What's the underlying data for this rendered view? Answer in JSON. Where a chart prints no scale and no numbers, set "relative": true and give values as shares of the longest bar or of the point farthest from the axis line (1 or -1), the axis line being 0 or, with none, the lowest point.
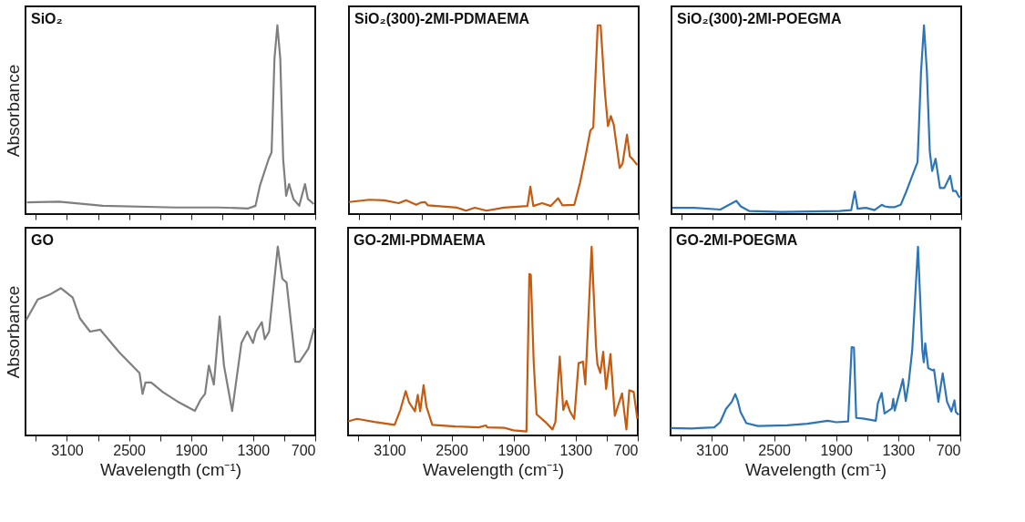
{
  "chart_data": [
    {
      "type": "line",
      "title": "SiO₂",
      "ylabel": "Absorbance",
      "relative": true,
      "tick_labels": false,
      "color": "#7f7f7f",
      "xlim": [
        3500,
        700
      ],
      "xticks": [
        {
          "value": 3400,
          "label": null
        },
        3100,
        {
          "value": 2800,
          "label": null
        },
        2500,
        {
          "value": 2200,
          "label": null
        },
        1900,
        {
          "value": 1600,
          "label": null
        },
        1300,
        {
          "value": 1000,
          "label": null
        },
        700
      ],
      "x": [
        3486,
        3176,
        2754,
        2051,
        1629,
        1347,
        1277,
        1235,
        1150,
        1122,
        1094,
        1066,
        1038,
        1010,
        981,
        953,
        911,
        855,
        799,
        771,
        714
      ],
      "values": [
        0.062,
        0.066,
        0.044,
        0.035,
        0.035,
        0.03,
        0.044,
        0.15,
        0.292,
        0.327,
        0.823,
        1.0,
        0.823,
        0.292,
        0.097,
        0.159,
        0.08,
        0.044,
        0.159,
        0.08,
        0.053
      ]
    },
    {
      "type": "line",
      "title": "SiO₂(300)-2MI-PDMAEMA",
      "relative": true,
      "tick_labels": false,
      "color": "#c55a11",
      "xlim": [
        3500,
        700
      ],
      "xticks": [
        {
          "value": 3400,
          "label": null
        },
        3100,
        {
          "value": 2800,
          "label": null
        },
        2500,
        {
          "value": 2200,
          "label": null
        },
        1900,
        {
          "value": 1600,
          "label": null
        },
        1300,
        {
          "value": 1000,
          "label": null
        },
        700
      ],
      "x": [
        3500,
        3302,
        3161,
        3019,
        2949,
        2850,
        2807,
        2765,
        2736,
        2454,
        2369,
        2284,
        2171,
        2001,
        1775,
        1747,
        1718,
        1634,
        1549,
        1478,
        1436,
        1322,
        1266,
        1209,
        1167,
        1139,
        1096,
        1068,
        1026,
        997,
        969,
        941,
        884,
        856,
        813,
        785,
        757,
        714
      ],
      "values": [
        0.064,
        0.076,
        0.073,
        0.058,
        0.073,
        0.049,
        0.061,
        0.064,
        0.046,
        0.034,
        0.018,
        0.034,
        0.018,
        0.034,
        0.043,
        0.145,
        0.043,
        0.058,
        0.043,
        0.084,
        0.046,
        0.049,
        0.168,
        0.321,
        0.443,
        0.458,
        1.0,
        1.0,
        0.641,
        0.466,
        0.519,
        0.473,
        0.244,
        0.267,
        0.42,
        0.305,
        0.29,
        0.26
      ]
    },
    {
      "type": "line",
      "title": "SiO₂(300)-2MI-POEGMA",
      "relative": true,
      "tick_labels": false,
      "color": "#2e75b6",
      "xlim": [
        3500,
        700
      ],
      "xticks": [
        {
          "value": 3400,
          "label": null
        },
        3100,
        {
          "value": 2800,
          "label": null
        },
        2500,
        {
          "value": 2200,
          "label": null
        },
        1900,
        {
          "value": 1600,
          "label": null
        },
        1300,
        {
          "value": 1000,
          "label": null
        },
        700
      ],
      "x": [
        3492,
        3281,
        3028,
        2943,
        2873,
        2831,
        2747,
        2437,
        1875,
        1763,
        1729,
        1701,
        1622,
        1538,
        1468,
        1440,
        1397,
        1341,
        1285,
        1229,
        1173,
        1122,
        1088,
        1060,
        1032,
        1004,
        981,
        948,
        905,
        863,
        807,
        779,
        751,
        723,
        700
      ],
      "values": [
        0.033,
        0.033,
        0.024,
        0.049,
        0.07,
        0.041,
        0.016,
        0.011,
        0.016,
        0.021,
        0.119,
        0.028,
        0.033,
        0.021,
        0.049,
        0.041,
        0.037,
        0.037,
        0.049,
        0.122,
        0.203,
        0.276,
        0.756,
        1.0,
        0.756,
        0.333,
        0.228,
        0.293,
        0.138,
        0.138,
        0.203,
        0.122,
        0.122,
        0.093,
        0.087
      ]
    },
    {
      "type": "line",
      "title": "GO",
      "ylabel": "Absorbance",
      "xlabel": "Wavelength (cm⁻¹)",
      "relative": true,
      "tick_labels": "x",
      "color": "#7f7f7f",
      "xlim": [
        3500,
        700
      ],
      "xticks": [
        {
          "value": 3400,
          "label": null
        },
        3100,
        {
          "value": 2800,
          "label": null
        },
        2500,
        {
          "value": 2200,
          "label": null
        },
        1900,
        {
          "value": 1600,
          "label": null
        },
        1300,
        {
          "value": 1000,
          "label": null
        },
        700
      ],
      "x": [
        3494,
        3382,
        3269,
        3157,
        3044,
        2974,
        2876,
        2777,
        2594,
        2398,
        2369,
        2341,
        2285,
        2173,
        2032,
        1863,
        1807,
        1765,
        1728,
        1680,
        1624,
        1582,
        1503,
        1413,
        1357,
        1301,
        1273,
        1216,
        1188,
        1146,
        1062,
        1018,
        977,
        893,
        851,
        766,
        710
      ],
      "values": [
        0.61,
        0.72,
        0.745,
        0.78,
        0.73,
        0.62,
        0.55,
        0.56,
        0.44,
        0.33,
        0.22,
        0.28,
        0.28,
        0.23,
        0.18,
        0.13,
        0.19,
        0.22,
        0.37,
        0.27,
        0.63,
        0.37,
        0.13,
        0.49,
        0.55,
        0.49,
        0.55,
        0.6,
        0.51,
        0.55,
        1.0,
        0.83,
        0.81,
        0.39,
        0.39,
        0.46,
        0.57
      ]
    },
    {
      "type": "line",
      "title": "GO-2MI-PDMAEMA",
      "xlabel": "Wavelength (cm⁻¹)",
      "relative": true,
      "tick_labels": "x",
      "color": "#c55a11",
      "xlim": [
        3500,
        700
      ],
      "xticks": [
        {
          "value": 3400,
          "label": null
        },
        3100,
        {
          "value": 2800,
          "label": null
        },
        2500,
        {
          "value": 2200,
          "label": null
        },
        1900,
        {
          "value": 1600,
          "label": null
        },
        1300,
        {
          "value": 1000,
          "label": null
        },
        700
      ],
      "x": [
        3498,
        3414,
        3246,
        3050,
        2994,
        2943,
        2910,
        2854,
        2826,
        2803,
        2770,
        2742,
        2686,
        2462,
        2238,
        2168,
        2154,
        1986,
        1902,
        1776,
        1748,
        1734,
        1706,
        1678,
        1594,
        1524,
        1496,
        1454,
        1420,
        1389,
        1356,
        1314,
        1272,
        1230,
        1207,
        1174,
        1146,
        1104,
        1090,
        1062,
        1034,
        1006,
        964,
        922,
        852,
        810,
        782,
        740,
        704
      ],
      "values": [
        0.075,
        0.088,
        0.072,
        0.056,
        0.136,
        0.235,
        0.175,
        0.128,
        0.215,
        0.128,
        0.266,
        0.152,
        0.056,
        0.048,
        0.043,
        0.053,
        0.043,
        0.04,
        0.027,
        0.021,
        0.855,
        0.852,
        0.392,
        0.112,
        0.072,
        0.032,
        0.072,
        0.418,
        0.135,
        0.183,
        0.128,
        0.088,
        0.383,
        0.391,
        0.271,
        0.662,
        1.0,
        0.474,
        0.378,
        0.331,
        0.443,
        0.247,
        0.431,
        0.104,
        0.223,
        0.032,
        0.239,
        0.231,
        0.088
      ]
    },
    {
      "type": "line",
      "title": "GO-2MI-POEGMA",
      "xlabel": "Wavelength (cm⁻¹)",
      "relative": true,
      "tick_labels": "x",
      "color": "#2e75b6",
      "xlim": [
        3500,
        700
      ],
      "xticks": [
        {
          "value": 3400,
          "label": null
        },
        3100,
        {
          "value": 2800,
          "label": null
        },
        2500,
        {
          "value": 2200,
          "label": null
        },
        1900,
        {
          "value": 1600,
          "label": null
        },
        1300,
        {
          "value": 1000,
          "label": null
        },
        700
      ],
      "x": [
        3499,
        3303,
        3078,
        3021,
        2965,
        2909,
        2875,
        2852,
        2824,
        2768,
        2656,
        2374,
        2178,
        1981,
        1896,
        1784,
        1750,
        1728,
        1706,
        1643,
        1517,
        1497,
        1460,
        1432,
        1362,
        1348,
        1334,
        1278,
        1255,
        1227,
        1199,
        1165,
        1109,
        1067,
        1053,
        1039,
        1010,
        968,
        954,
        912,
        870,
        828,
        786,
        757,
        743,
        715
      ],
      "values": [
        0.039,
        0.037,
        0.043,
        0.07,
        0.14,
        0.178,
        0.219,
        0.186,
        0.124,
        0.065,
        0.05,
        0.054,
        0.062,
        0.078,
        0.07,
        0.074,
        0.468,
        0.465,
        0.093,
        0.09,
        0.078,
        0.171,
        0.225,
        0.116,
        0.143,
        0.194,
        0.132,
        0.248,
        0.298,
        0.183,
        0.279,
        0.45,
        1.0,
        0.45,
        0.388,
        0.488,
        0.357,
        0.345,
        0.349,
        0.178,
        0.329,
        0.178,
        0.127,
        0.186,
        0.124,
        0.109
      ]
    }
  ]
}
